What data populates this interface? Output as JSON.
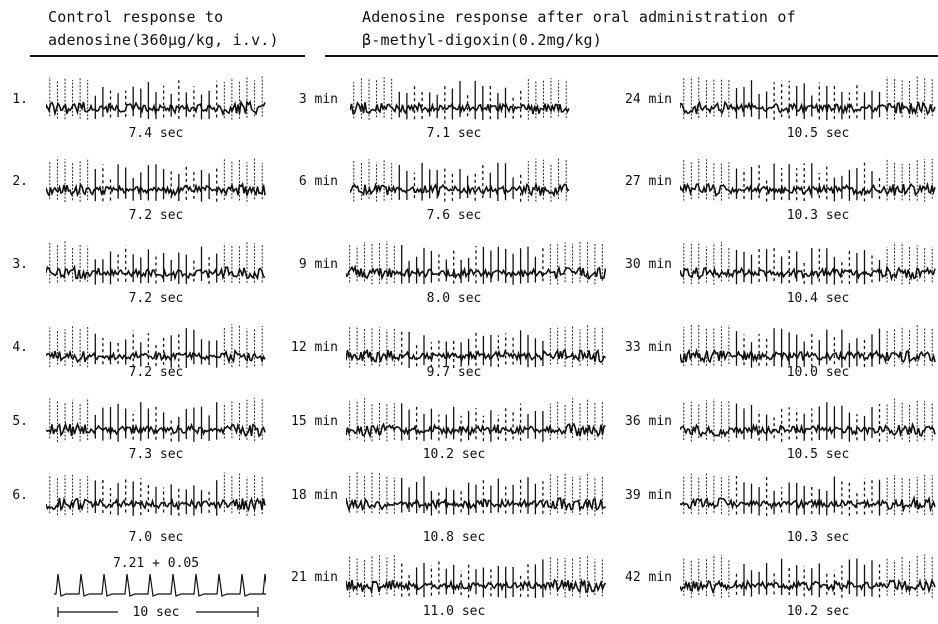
{
  "header": {
    "left_line1": "Control response to",
    "left_line2": "adenosine(360µg/kg, i.v.)",
    "right_line1": "Adenosine response after oral administration of",
    "right_line2": "β-methyl-digoxin(0.2mg/kg)"
  },
  "control": [
    {
      "label": "1.",
      "duration": "7.4 sec"
    },
    {
      "label": "2.",
      "duration": "7.2 sec"
    },
    {
      "label": "3.",
      "duration": "7.2 sec"
    },
    {
      "label": "4.",
      "duration": "7.2 sec"
    },
    {
      "label": "5.",
      "duration": "7.3 sec"
    },
    {
      "label": "6.",
      "duration": "7.0 sec"
    }
  ],
  "mean": "7.21 + 0.05",
  "scale_label": "10 sec",
  "digoxin_col1": [
    {
      "time": "3 min",
      "duration": "7.1 sec"
    },
    {
      "time": "6 min",
      "duration": "7.6 sec"
    },
    {
      "time": "9 min",
      "duration": "8.0 sec"
    },
    {
      "time": "12 min",
      "duration": "9.7 sec"
    },
    {
      "time": "15 min",
      "duration": "10.2 sec"
    },
    {
      "time": "18 min",
      "duration": "10.8 sec"
    },
    {
      "time": "21 min",
      "duration": "11.0 sec"
    }
  ],
  "digoxin_col2": [
    {
      "time": "24 min",
      "duration": "10.5 sec"
    },
    {
      "time": "27 min",
      "duration": "10.3 sec"
    },
    {
      "time": "30 min",
      "duration": "10.4 sec"
    },
    {
      "time": "33 min",
      "duration": "10.0 sec"
    },
    {
      "time": "36 min",
      "duration": "10.5 sec"
    },
    {
      "time": "39 min",
      "duration": "10.3 sec"
    },
    {
      "time": "42 min",
      "duration": "10.2 sec"
    }
  ]
}
